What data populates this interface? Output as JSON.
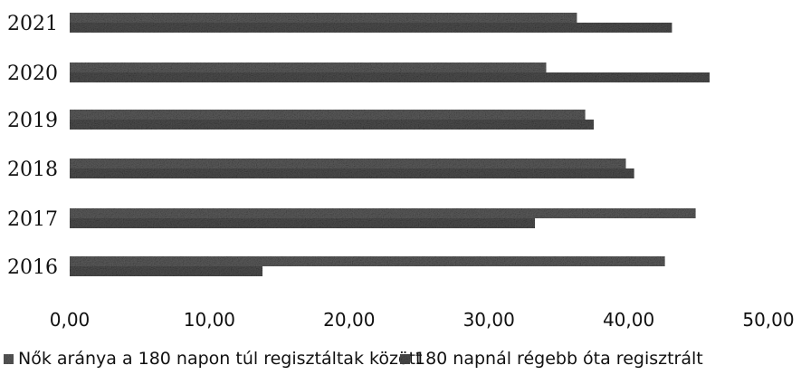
{
  "chart_data": {
    "type": "bar",
    "orientation": "horizontal",
    "categories": [
      "2016",
      "2017",
      "2018",
      "2019",
      "2020",
      "2021"
    ],
    "series": [
      {
        "name": "Nők aránya a 180 napon túl regisztáltak között",
        "values": [
          42.6,
          44.8,
          39.8,
          36.9,
          34.1,
          36.3
        ],
        "color": "#5a5a5a"
      },
      {
        "name": "180 napnál régebb óta regisztrált",
        "values": [
          13.8,
          33.3,
          40.4,
          37.5,
          45.8,
          43.1
        ],
        "color": "#4c4c4c"
      }
    ],
    "xlim": [
      0,
      50
    ],
    "xticks": [
      "0,00",
      "10,00",
      "20,00",
      "30,00",
      "40,00",
      "50,00"
    ],
    "legend_position": "bottom",
    "grid": false
  }
}
